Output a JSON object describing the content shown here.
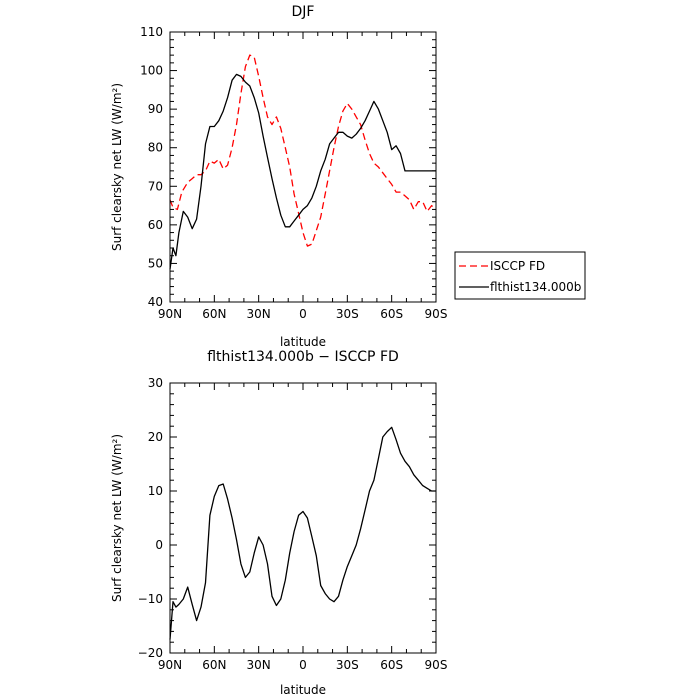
{
  "chart_data": [
    {
      "type": "line",
      "title": "DJF",
      "xlabel": "latitude",
      "ylabel": "Surf clearsky net LW (W/m²)",
      "xlim": [
        -90,
        90
      ],
      "ylim": [
        40,
        110
      ],
      "xticks": [
        -90,
        -60,
        -30,
        0,
        30,
        60,
        90
      ],
      "xtick_labels": [
        "90N",
        "60N",
        "30N",
        "0",
        "30S",
        "60S",
        "90S"
      ],
      "yticks": [
        40,
        50,
        60,
        70,
        80,
        90,
        100,
        110
      ],
      "ytick_labels": [
        "40",
        "50",
        "60",
        "70",
        "80",
        "90",
        "100",
        "110"
      ],
      "legend_position": "right",
      "series": [
        {
          "name": "ISCCP FD",
          "color": "#ff0000",
          "dash": "dashed",
          "x": [
            -90,
            -88,
            -85,
            -82,
            -78,
            -75,
            -72,
            -69,
            -66,
            -63,
            -60,
            -57,
            -54,
            -51,
            -48,
            -45,
            -42,
            -39,
            -36,
            -33,
            -30,
            -27,
            -24,
            -21,
            -18,
            -15,
            -12,
            -9,
            -6,
            -3,
            0,
            3,
            6,
            9,
            12,
            15,
            18,
            21,
            24,
            27,
            30,
            33,
            36,
            39,
            42,
            45,
            48,
            51,
            54,
            57,
            60,
            63,
            66,
            69,
            72,
            75,
            78,
            81,
            84,
            87,
            90
          ],
          "y": [
            66.5,
            64.5,
            64,
            68.5,
            71,
            72,
            73,
            73,
            74,
            76.5,
            76,
            77,
            74.5,
            75.5,
            80,
            86,
            94,
            101,
            104,
            103.5,
            98.5,
            93,
            88,
            86,
            88,
            85,
            80,
            75,
            68,
            63,
            58,
            54.5,
            55,
            58.5,
            62,
            68,
            74,
            80,
            85.5,
            89.5,
            91.5,
            90,
            88,
            86,
            82,
            78.5,
            76,
            75,
            73.5,
            72,
            70.5,
            68.5,
            68.5,
            67.5,
            66.5,
            64,
            66,
            66,
            63.5,
            65,
            64
          ]
        },
        {
          "name": "flthist134.000b",
          "color": "#000000",
          "dash": "solid",
          "x": [
            -90,
            -88,
            -86,
            -84,
            -81,
            -78,
            -75,
            -72,
            -69,
            -66,
            -63,
            -60,
            -57,
            -54,
            -51,
            -48,
            -45,
            -42,
            -39,
            -36,
            -33,
            -30,
            -27,
            -24,
            -21,
            -18,
            -15,
            -12,
            -9,
            -6,
            -3,
            0,
            3,
            6,
            9,
            12,
            15,
            18,
            21,
            24,
            27,
            30,
            33,
            36,
            39,
            42,
            45,
            48,
            51,
            54,
            57,
            60,
            63,
            66,
            69,
            72,
            75,
            78,
            81,
            84,
            87,
            90
          ],
          "y": [
            48.5,
            54,
            52,
            58,
            63.5,
            62,
            59,
            61.5,
            70,
            81,
            85.5,
            85.5,
            87,
            89.5,
            93,
            97.5,
            99,
            98.5,
            97,
            96,
            93,
            89,
            83,
            77.5,
            72,
            67,
            62.5,
            59.5,
            59.5,
            61,
            62.5,
            64,
            65,
            67,
            70,
            74,
            77,
            81,
            82.5,
            84,
            84,
            83,
            82.5,
            83.5,
            85,
            87,
            89.5,
            92,
            90,
            87,
            84,
            79.5,
            80.5,
            78.5,
            74,
            74,
            74,
            74,
            74,
            74,
            74,
            74
          ]
        }
      ]
    },
    {
      "type": "line",
      "title": "flthist134.000b − ISCCP FD",
      "xlabel": "latitude",
      "ylabel": "Surf clearsky net LW (W/m²)",
      "xlim": [
        -90,
        90
      ],
      "ylim": [
        -20,
        30
      ],
      "xticks": [
        -90,
        -60,
        -30,
        0,
        30,
        60,
        90
      ],
      "xtick_labels": [
        "90N",
        "60N",
        "30N",
        "0",
        "30S",
        "60S",
        "90S"
      ],
      "yticks": [
        -20,
        -10,
        0,
        10,
        20,
        30
      ],
      "ytick_labels": [
        "−20",
        "−10",
        "0",
        "10",
        "20",
        "30"
      ],
      "series": [
        {
          "color": "#000000",
          "dash": "solid",
          "x": [
            -90,
            -88,
            -86,
            -84,
            -81,
            -78,
            -75,
            -72,
            -69,
            -66,
            -63,
            -60,
            -57,
            -54,
            -51,
            -48,
            -45,
            -42,
            -39,
            -36,
            -33,
            -30,
            -27,
            -24,
            -21,
            -18,
            -15,
            -12,
            -9,
            -6,
            -3,
            0,
            3,
            6,
            9,
            12,
            15,
            18,
            21,
            24,
            27,
            30,
            33,
            36,
            39,
            42,
            45,
            48,
            51,
            54,
            57,
            60,
            63,
            66,
            69,
            72,
            75,
            78,
            81,
            84,
            87,
            90
          ],
          "y": [
            -17.5,
            -10.5,
            -11.5,
            -11,
            -10,
            -7.8,
            -11,
            -14,
            -11.5,
            -7,
            5.5,
            9,
            11,
            11.3,
            8.5,
            5,
            1,
            -3.5,
            -6,
            -5,
            -1.5,
            1.5,
            0,
            -3.5,
            -9.5,
            -11.2,
            -10,
            -6.5,
            -1.5,
            2.5,
            5.5,
            6.2,
            5,
            1.5,
            -2,
            -7.5,
            -9,
            -10,
            -10.5,
            -9.5,
            -6.5,
            -4,
            -2,
            0,
            3,
            6.5,
            10,
            12,
            16,
            20,
            21,
            21.8,
            19.5,
            17,
            15.5,
            14.5,
            13,
            12,
            11,
            10.5,
            10,
            10
          ]
        }
      ]
    }
  ]
}
